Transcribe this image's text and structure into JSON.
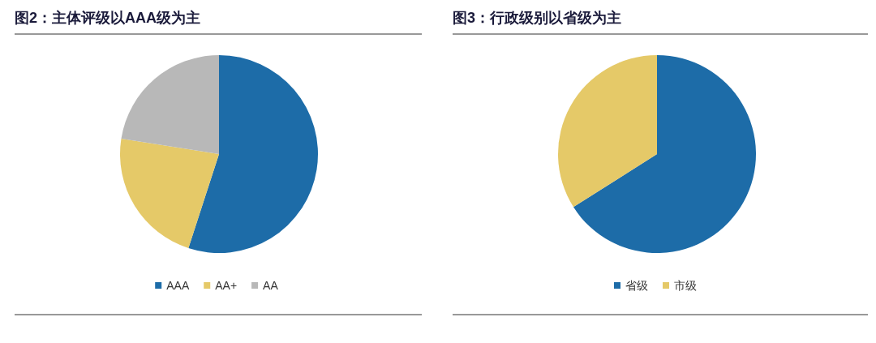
{
  "chart_data": [
    {
      "type": "pie",
      "title": "图2：主体评级以AAA级为主",
      "categories": [
        "AAA",
        "AA+",
        "AA"
      ],
      "values": [
        55,
        22.5,
        22.5
      ],
      "colors": [
        "#1d6ca8",
        "#e5c968",
        "#b8b8b8"
      ],
      "legend": "bottom"
    },
    {
      "type": "pie",
      "title": "图3：行政级别以省级为主",
      "categories": [
        "省级",
        "市级"
      ],
      "values": [
        66,
        34
      ],
      "colors": [
        "#1d6ca8",
        "#e5c968"
      ],
      "legend": "bottom"
    }
  ]
}
